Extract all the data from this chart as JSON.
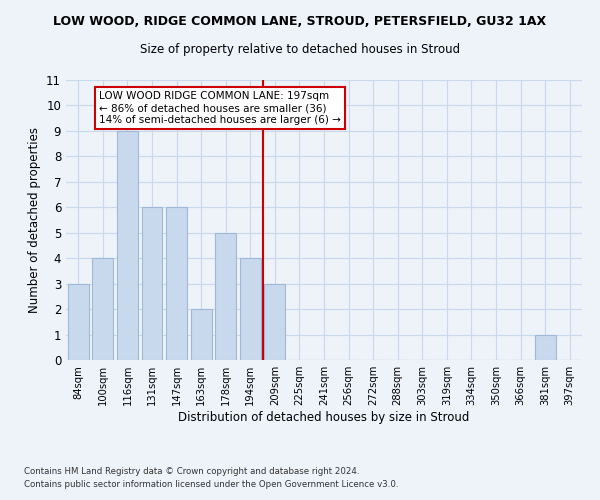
{
  "title": "LOW WOOD, RIDGE COMMON LANE, STROUD, PETERSFIELD, GU32 1AX",
  "subtitle": "Size of property relative to detached houses in Stroud",
  "xlabel": "Distribution of detached houses by size in Stroud",
  "ylabel": "Number of detached properties",
  "footnote1": "Contains HM Land Registry data © Crown copyright and database right 2024.",
  "footnote2": "Contains public sector information licensed under the Open Government Licence v3.0.",
  "bar_labels": [
    "84sqm",
    "100sqm",
    "116sqm",
    "131sqm",
    "147sqm",
    "163sqm",
    "178sqm",
    "194sqm",
    "209sqm",
    "225sqm",
    "241sqm",
    "256sqm",
    "272sqm",
    "288sqm",
    "303sqm",
    "319sqm",
    "334sqm",
    "350sqm",
    "366sqm",
    "381sqm",
    "397sqm"
  ],
  "bar_values": [
    3,
    4,
    9,
    6,
    6,
    2,
    5,
    4,
    3,
    0,
    0,
    0,
    0,
    0,
    0,
    0,
    0,
    0,
    0,
    1,
    0
  ],
  "bar_color": "#c8d9ed",
  "bar_edge_color": "#a0b8d8",
  "grid_color": "#c8d9ed",
  "bg_color": "#eef2f9",
  "property_line_x": 7.5,
  "property_line_color": "#cc0000",
  "annotation_box_text": "LOW WOOD RIDGE COMMON LANE: 197sqm\n← 86% of detached houses are smaller (36)\n14% of semi-detached houses are larger (6) →",
  "ylim": [
    0,
    11
  ],
  "yticks": [
    0,
    1,
    2,
    3,
    4,
    5,
    6,
    7,
    8,
    9,
    10,
    11
  ]
}
